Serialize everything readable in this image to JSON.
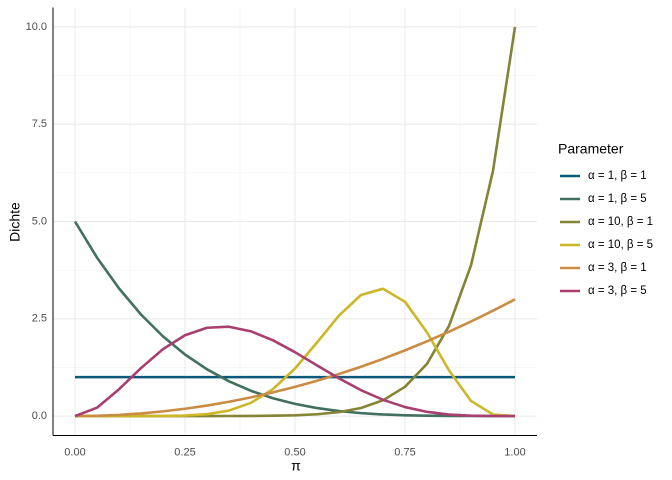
{
  "chart_data": {
    "type": "line",
    "x_label": "π",
    "y_label": "Dichte",
    "legend_title": "Parameter",
    "legend_position": "right",
    "grid": true,
    "x": [
      0,
      0.05,
      0.1,
      0.15,
      0.2,
      0.25,
      0.3,
      0.35,
      0.4,
      0.45,
      0.5,
      0.55,
      0.6,
      0.65,
      0.7,
      0.75,
      0.8,
      0.85,
      0.9,
      0.95,
      1
    ],
    "xlim": [
      -0.05,
      1.05
    ],
    "xticks": [
      {
        "value": 0,
        "label": "0.00"
      },
      {
        "value": 0.25,
        "label": "0.25"
      },
      {
        "value": 0.5,
        "label": "0.50"
      },
      {
        "value": 0.75,
        "label": "0.75"
      },
      {
        "value": 1,
        "label": "1.00"
      }
    ],
    "ylim": [
      -0.5,
      10.5
    ],
    "yticks": [
      {
        "value": 0,
        "label": "0.0"
      },
      {
        "value": 2.5,
        "label": "2.5"
      },
      {
        "value": 5,
        "label": "5.0"
      },
      {
        "value": 7.5,
        "label": "7.5"
      },
      {
        "value": 10,
        "label": "10.0"
      }
    ],
    "series": [
      {
        "name": "α = 1, β = 1",
        "color": "#0b5a7e",
        "values": [
          1,
          1,
          1,
          1,
          1,
          1,
          1,
          1,
          1,
          1,
          1,
          1,
          1,
          1,
          1,
          1,
          1,
          1,
          1,
          1,
          1
        ]
      },
      {
        "name": "α = 1, β = 5",
        "color": "#42705f",
        "values": [
          5,
          4.073,
          3.281,
          2.61,
          2.048,
          1.582,
          1.201,
          0.893,
          0.648,
          0.458,
          0.313,
          0.205,
          0.128,
          0.075,
          0.041,
          0.02,
          0.008,
          0.003,
          0.001,
          0,
          0
        ]
      },
      {
        "name": "α = 10, β = 1",
        "color": "#838434",
        "values": [
          0,
          0,
          0,
          0,
          0,
          0,
          0.0002,
          0.001,
          0.003,
          0.008,
          0.02,
          0.046,
          0.101,
          0.207,
          0.404,
          0.751,
          1.342,
          2.316,
          3.874,
          6.302,
          10
        ]
      },
      {
        "name": "α = 10, β = 5",
        "color": "#cdb628",
        "values": [
          0,
          0,
          0,
          0,
          0.002,
          0.012,
          0.047,
          0.141,
          0.34,
          0.693,
          1.222,
          1.89,
          2.583,
          3.111,
          3.272,
          2.936,
          2.15,
          1.173,
          0.388,
          0.039,
          0
        ]
      },
      {
        "name": "α = 3, β = 1",
        "color": "#c98c42",
        "values": [
          0,
          0.0075,
          0.03,
          0.0675,
          0.12,
          0.1875,
          0.27,
          0.3675,
          0.48,
          0.6075,
          0.75,
          0.9075,
          1.08,
          1.2675,
          1.47,
          1.6875,
          1.92,
          2.1675,
          2.43,
          2.7075,
          3
        ]
      },
      {
        "name": "α = 3, β = 5",
        "color": "#a93f6f",
        "values": [
          0,
          0.214,
          0.689,
          1.233,
          1.72,
          2.076,
          2.269,
          2.296,
          2.177,
          1.946,
          1.641,
          1.303,
          0.968,
          0.666,
          0.417,
          0.231,
          0.108,
          0.038,
          0.009,
          0.001,
          0
        ]
      }
    ]
  }
}
